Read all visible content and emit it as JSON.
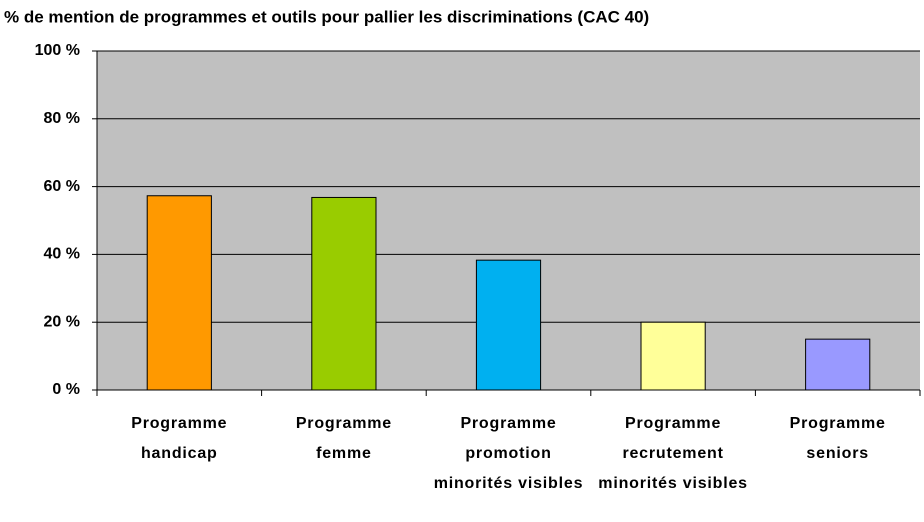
{
  "chart_data": {
    "type": "bar",
    "title": "% de mention de programmes et outils pour pallier les discriminations (CAC 40)",
    "categories": [
      "Programme handicap",
      "Programme femme",
      "Programme promotion minorités visibles",
      "Programme recrutement minorités visibles",
      "Programme seniors"
    ],
    "values": [
      57.3,
      56.8,
      38.3,
      20,
      15
    ],
    "colors": [
      "#ff9900",
      "#99cc00",
      "#00b0f0",
      "#ffff99",
      "#9999ff"
    ],
    "ylim": [
      0,
      100
    ],
    "yticks": [
      {
        "value": 0,
        "label": "0 %"
      },
      {
        "value": 20,
        "label": "20 %"
      },
      {
        "value": 40,
        "label": "40 %"
      },
      {
        "value": 60,
        "label": "60 %"
      },
      {
        "value": 80,
        "label": "80 %"
      },
      {
        "value": 100,
        "label": "100 %"
      }
    ],
    "grid": true
  }
}
